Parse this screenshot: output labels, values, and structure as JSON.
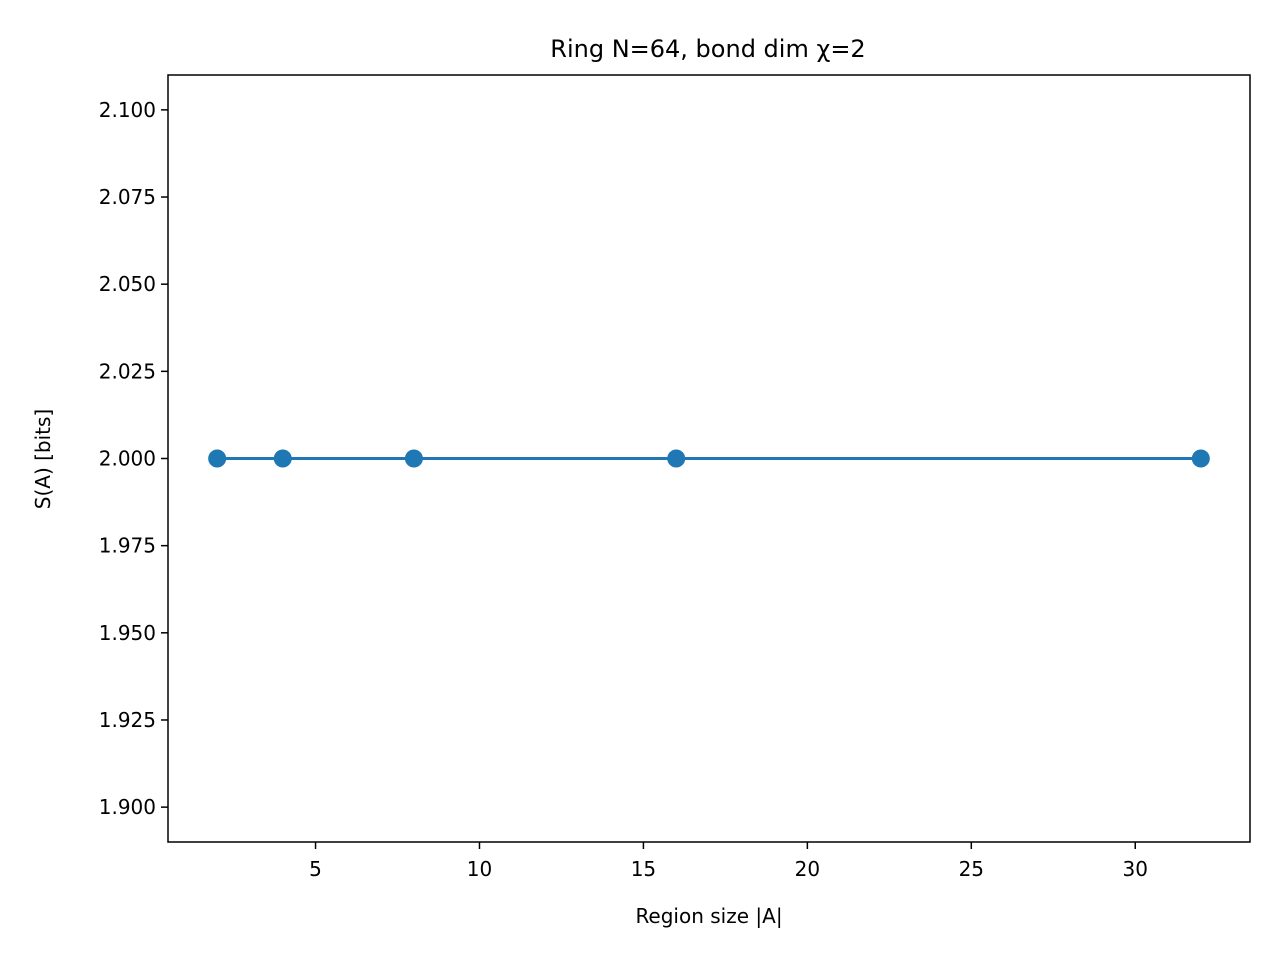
{
  "chart_data": {
    "type": "line",
    "title": "Ring N=64, bond dim χ=2",
    "xlabel": "Region size |A|",
    "ylabel": "S(A) [bits]",
    "xlim": [
      0.5,
      33.5
    ],
    "ylim": [
      1.89,
      2.11
    ],
    "xticks": [
      5,
      10,
      15,
      20,
      25,
      30
    ],
    "xtick_labels": [
      "5",
      "10",
      "15",
      "20",
      "25",
      "30"
    ],
    "yticks": [
      1.9,
      1.925,
      1.95,
      1.975,
      2.0,
      2.025,
      2.05,
      2.075,
      2.1
    ],
    "ytick_labels": [
      "1.900",
      "1.925",
      "1.950",
      "1.975",
      "2.000",
      "2.025",
      "2.050",
      "2.075",
      "2.100"
    ],
    "grid": false,
    "series": [
      {
        "x": [
          2,
          4,
          8,
          16,
          32
        ],
        "y": [
          2.0,
          2.0,
          2.0,
          2.0,
          2.0
        ],
        "color": "#1f77b4",
        "marker": "circle"
      }
    ]
  }
}
